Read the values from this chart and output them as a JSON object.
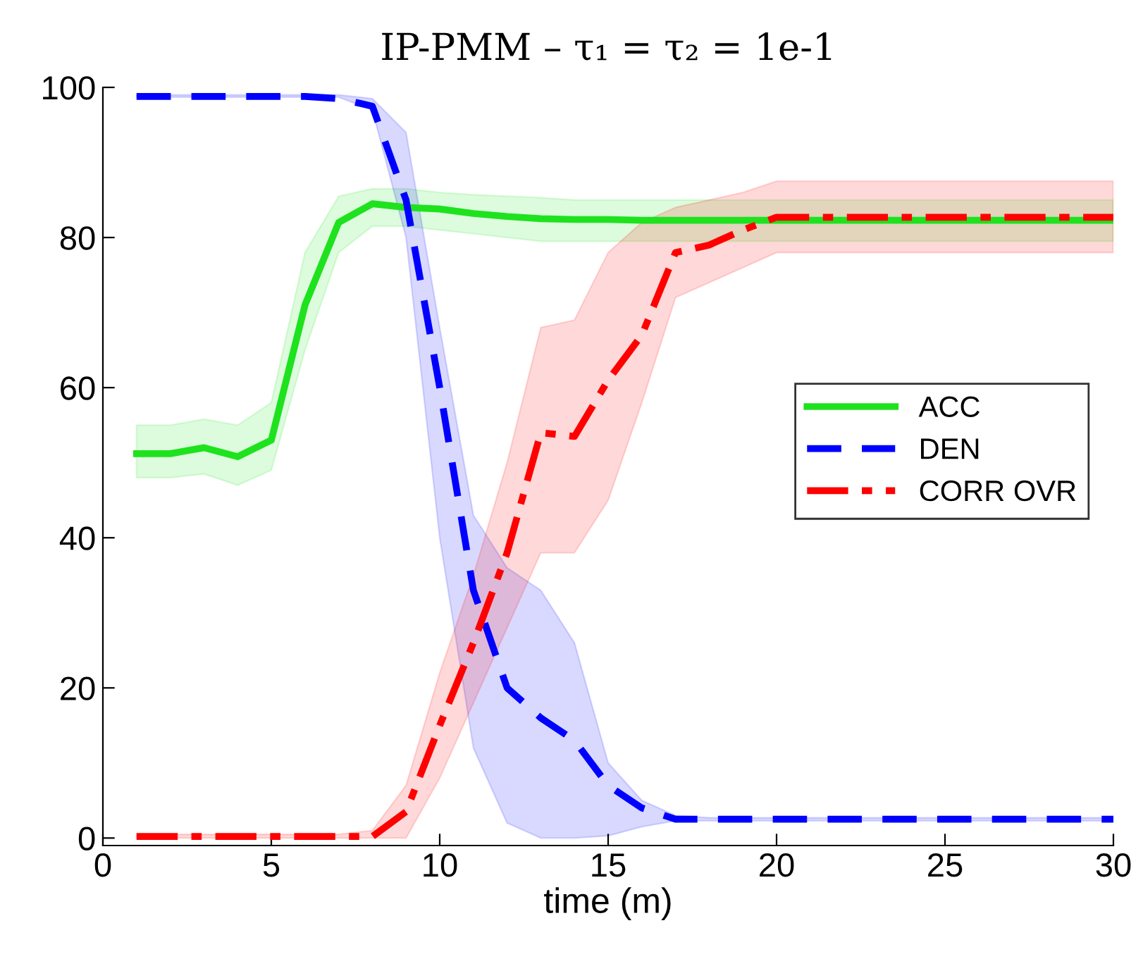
{
  "chart_data": {
    "type": "line",
    "title": "IP-PMM – τ₁ = τ₂ = 1e-1",
    "xlabel": "time (m)",
    "x": [
      1,
      2,
      3,
      4,
      5,
      6,
      7,
      8,
      9,
      10,
      11,
      12,
      13,
      14,
      15,
      16,
      17,
      18,
      19,
      20,
      21,
      22,
      23,
      24,
      25,
      26,
      27,
      28,
      29,
      30
    ],
    "series": [
      {
        "name": "ACC",
        "color": "#1ee21e",
        "line_style": "solid",
        "values": [
          51.2,
          51.2,
          52,
          50.8,
          53,
          71,
          82,
          84.5,
          84,
          83.8,
          83.2,
          82.8,
          82.5,
          82.4,
          82.4,
          82.3,
          82.3,
          82.3,
          82.3,
          82.3,
          82.3,
          82.3,
          82.3,
          82.3,
          82.3,
          82.3,
          82.3,
          82.3,
          82.3,
          82.3
        ],
        "lower": [
          48,
          48,
          48.5,
          47,
          49,
          65,
          78,
          81.5,
          81.5,
          81,
          80.5,
          80,
          79.5,
          79.5,
          79.5,
          79.5,
          79.5,
          79.5,
          79.5,
          79.5,
          79.5,
          79.5,
          79.5,
          79.5,
          79.5,
          79.5,
          79.5,
          79.5,
          79.5,
          79.5
        ],
        "upper": [
          55,
          55,
          55.8,
          55,
          58,
          78,
          85.5,
          86.5,
          86.5,
          86,
          85.7,
          85.5,
          85.3,
          85,
          85,
          85,
          85,
          85,
          85,
          85,
          85,
          85,
          85,
          85,
          85,
          85,
          85,
          85,
          85,
          85
        ]
      },
      {
        "name": "DEN",
        "color": "#0000ff",
        "line_style": "dashed",
        "values": [
          98.8,
          98.8,
          98.8,
          98.8,
          98.8,
          98.8,
          98.5,
          97.5,
          85,
          60,
          33,
          20,
          16,
          13,
          7,
          4,
          2.5,
          2.5,
          2.5,
          2.5,
          2.5,
          2.5,
          2.5,
          2.5,
          2.5,
          2.5,
          2.5,
          2.5,
          2.5,
          2.5
        ],
        "lower": [
          98.7,
          98.7,
          98.7,
          98.7,
          98.7,
          98.7,
          98.7,
          97,
          80,
          40,
          12,
          2,
          0,
          0,
          0.3,
          1.5,
          2.3,
          2.3,
          2.3,
          2.3,
          2.3,
          2.3,
          2.3,
          2.3,
          2.3,
          2.3,
          2.3,
          2.3,
          2.3,
          2.3
        ],
        "upper": [
          99,
          99,
          99,
          99,
          99,
          99,
          99,
          98.5,
          94,
          68,
          43,
          36,
          33,
          26,
          10,
          5,
          3,
          2.7,
          2.7,
          2.7,
          2.7,
          2.7,
          2.7,
          2.7,
          2.7,
          2.7,
          2.7,
          2.7,
          2.7,
          2.7
        ]
      },
      {
        "name": "CORR OVR",
        "color": "#ff0000",
        "line_style": "dashdot",
        "values": [
          0.2,
          0.2,
          0.2,
          0.2,
          0.2,
          0.2,
          0.2,
          0.2,
          3.5,
          15,
          26,
          38,
          54,
          53.5,
          61,
          67,
          78,
          79,
          81,
          82.7,
          82.7,
          82.7,
          82.7,
          82.7,
          82.7,
          82.7,
          82.7,
          82.7,
          82.7,
          82.7
        ],
        "lower": [
          0,
          0,
          0,
          0,
          0,
          0,
          0,
          0,
          0,
          8,
          18,
          28,
          38,
          38,
          45,
          58,
          72,
          74,
          76,
          78,
          78,
          78,
          78,
          78,
          78,
          78,
          78,
          78,
          78,
          78
        ],
        "upper": [
          0.5,
          0.5,
          0.5,
          0.5,
          0.5,
          0.5,
          0.5,
          1,
          7,
          22,
          35,
          50,
          68,
          69,
          78,
          82,
          84,
          85,
          86,
          87.5,
          87.5,
          87.5,
          87.5,
          87.5,
          87.5,
          87.5,
          87.5,
          87.5,
          87.5,
          87.5
        ]
      }
    ],
    "xlim": [
      0,
      30
    ],
    "ylim": [
      -1,
      100
    ],
    "xticks": [
      0,
      5,
      10,
      15,
      20,
      25,
      30
    ],
    "yticks": [
      0,
      20,
      40,
      60,
      80,
      100
    ],
    "grid": false,
    "legend": "right",
    "marker": "none"
  }
}
